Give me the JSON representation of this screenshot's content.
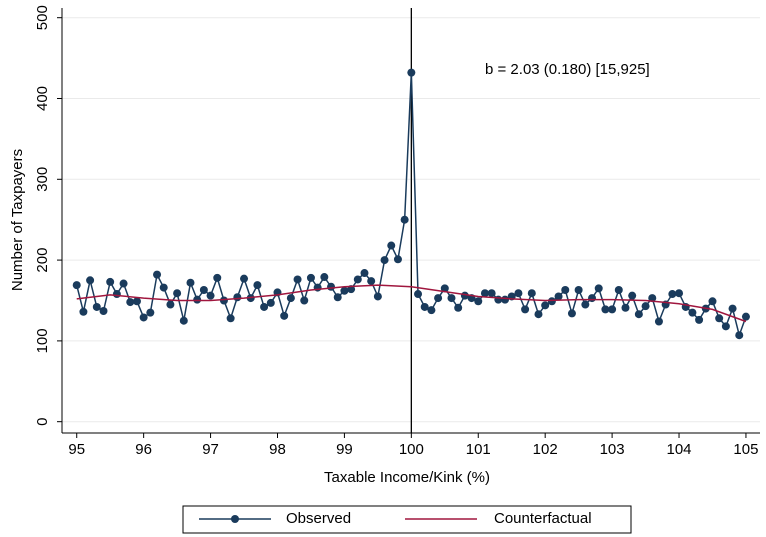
{
  "chart_data": {
    "type": "line",
    "x_label": "Taxable Income/Kink (%)",
    "y_label": "Number of Taxpayers",
    "annotation": "b = 2.03 (0.180)  [15,925]",
    "vline": 100,
    "xlim": [
      94.78,
      105.21
    ],
    "ylim": [
      -14,
      512
    ],
    "xticks": [
      95,
      96,
      97,
      98,
      99,
      100,
      101,
      102,
      103,
      104,
      105
    ],
    "yticks": [
      0,
      100,
      200,
      300,
      400,
      500
    ],
    "grid": true,
    "legend": "bottom",
    "series": [
      {
        "name": "Observed",
        "color": "#1a3b5c",
        "marker": "circle",
        "x": [
          95,
          95.1,
          95.2,
          95.3,
          95.4,
          95.5,
          95.6,
          95.7,
          95.8,
          95.9,
          96,
          96.1,
          96.2,
          96.3,
          96.4,
          96.5,
          96.6,
          96.7,
          96.8,
          96.9,
          97,
          97.1,
          97.2,
          97.3,
          97.4,
          97.5,
          97.6,
          97.7,
          97.8,
          97.9,
          98,
          98.1,
          98.2,
          98.3,
          98.4,
          98.5,
          98.6,
          98.7,
          98.8,
          98.9,
          99,
          99.1,
          99.2,
          99.3,
          99.4,
          99.5,
          99.6,
          99.7,
          99.8,
          99.9,
          100,
          100.1,
          100.2,
          100.3,
          100.4,
          100.5,
          100.6,
          100.7,
          100.8,
          100.9,
          101,
          101.1,
          101.2,
          101.3,
          101.4,
          101.5,
          101.6,
          101.7,
          101.8,
          101.9,
          102,
          102.1,
          102.2,
          102.3,
          102.4,
          102.5,
          102.6,
          102.7,
          102.8,
          102.9,
          103,
          103.1,
          103.2,
          103.3,
          103.4,
          103.5,
          103.6,
          103.7,
          103.8,
          103.9,
          104,
          104.1,
          104.2,
          104.3,
          104.4,
          104.5,
          104.6,
          104.7,
          104.8,
          104.9,
          105
        ],
        "values": [
          169,
          136,
          175,
          142,
          137,
          173,
          158,
          171,
          148,
          149,
          129,
          135,
          182,
          166,
          145,
          159,
          125,
          172,
          151,
          163,
          156,
          178,
          150,
          128,
          154,
          177,
          153,
          169,
          142,
          147,
          160,
          131,
          153,
          176,
          150,
          178,
          166,
          179,
          167,
          154,
          162,
          164,
          176,
          184,
          174,
          155,
          200,
          218,
          201,
          250,
          432,
          158,
          142,
          138,
          153,
          165,
          153,
          141,
          156,
          153,
          149,
          159,
          159,
          151,
          151,
          155,
          159,
          139,
          159,
          133,
          144,
          149,
          155,
          163,
          134,
          163,
          145,
          153,
          165,
          139,
          139,
          163,
          141,
          156,
          133,
          143,
          153,
          124,
          145,
          158,
          159,
          142,
          135,
          126,
          140,
          149,
          128,
          118,
          140,
          107,
          130
        ]
      },
      {
        "name": "Counterfactual",
        "color": "#a0163e",
        "x": [
          95,
          95.5,
          96,
          96.5,
          97,
          97.5,
          98,
          98.5,
          99,
          99.5,
          100,
          100.5,
          101,
          101.5,
          102,
          102.5,
          103,
          103.5,
          104,
          104.5,
          105
        ],
        "values": [
          152,
          157,
          153,
          150,
          150,
          153,
          157,
          163,
          167,
          169,
          167,
          161,
          155,
          152,
          150,
          151,
          151,
          150,
          146,
          139,
          124
        ]
      }
    ]
  }
}
